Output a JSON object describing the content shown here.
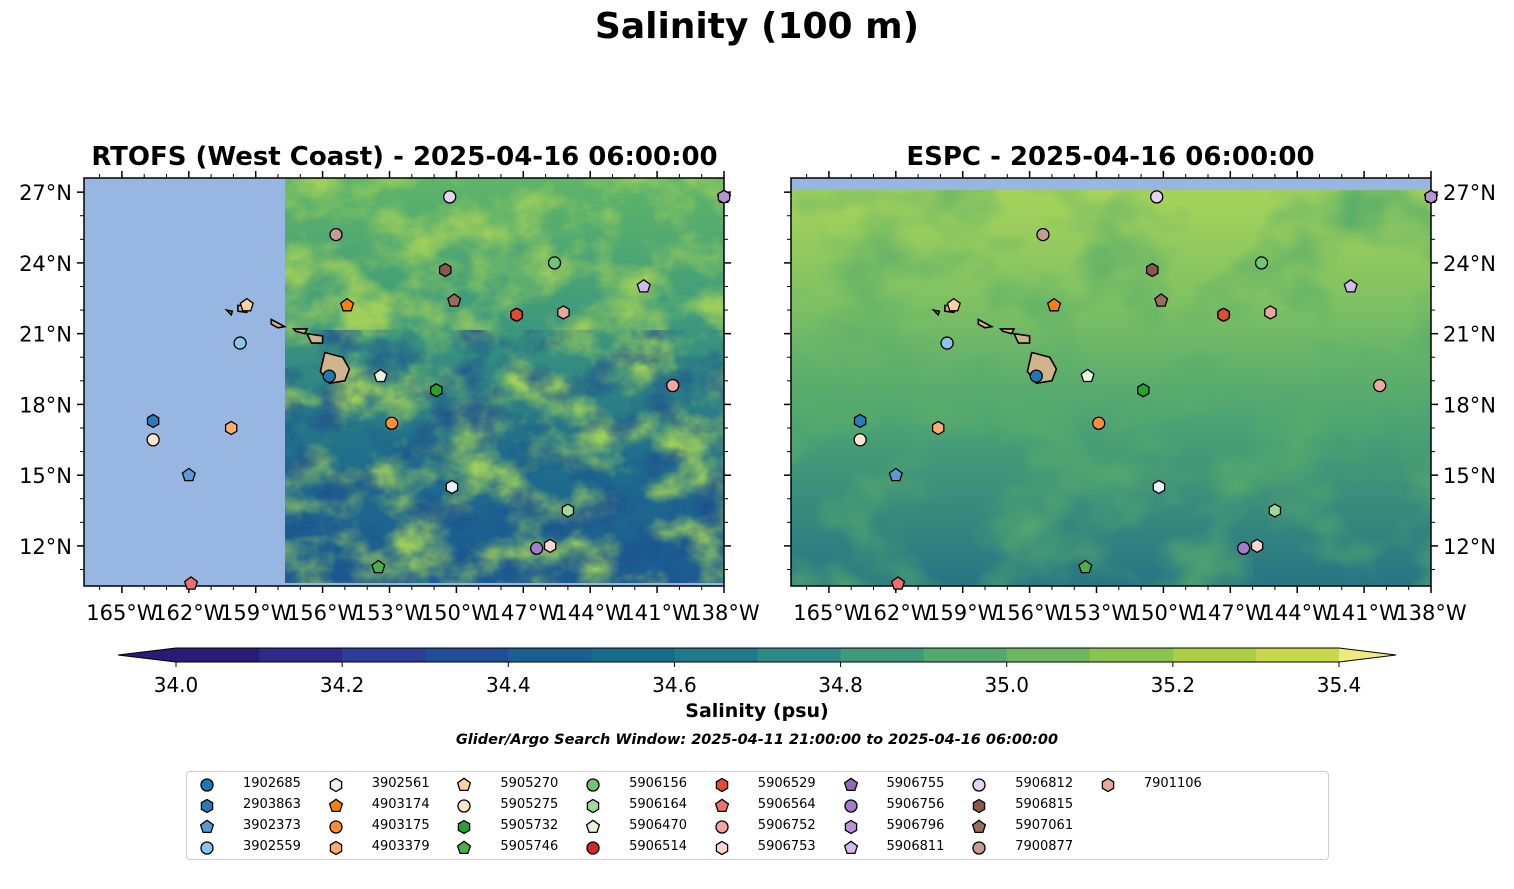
{
  "title": "Salinity (100 m)",
  "panels": [
    {
      "id": "rtofs",
      "title": "RTOFS (West Coast) - 2025-04-16 06:00:00"
    },
    {
      "id": "espc",
      "title": "ESPC - 2025-04-16 06:00:00"
    }
  ],
  "lon_ticks": [
    "165°W",
    "162°W",
    "159°W",
    "156°W",
    "153°W",
    "150°W",
    "147°W",
    "144°W",
    "141°W",
    "138°W"
  ],
  "lat_ticks": [
    "27°N",
    "24°N",
    "21°N",
    "18°N",
    "15°N",
    "12°N"
  ],
  "extent": {
    "lon": [
      -166.7,
      -138.0
    ],
    "lat": [
      10.3,
      27.6
    ]
  },
  "colorbar": {
    "label": "Salinity (psu)",
    "min": 34.0,
    "max": 35.4,
    "step": 0.1,
    "tick_labels": [
      "34.0",
      "34.2",
      "34.4",
      "34.6",
      "34.8",
      "35.0",
      "35.2",
      "35.4"
    ],
    "colors": [
      "#2b1b74",
      "#2e2a8c",
      "#2a3d98",
      "#1f4e96",
      "#1a5f92",
      "#176c8e",
      "#1f7a8a",
      "#2d8a84",
      "#3f9a7a",
      "#55a96d",
      "#6eb75e",
      "#8bc34f",
      "#a9cf45",
      "#c7d94b",
      "#efea7e"
    ]
  },
  "search_window": "Glider/Argo Search Window: 2025-04-11 21:00:00 to 2025-04-16 06:00:00",
  "floats": [
    {
      "id": "1902685",
      "marker": "circle",
      "color": "#1f77b4",
      "lon": -155.7,
      "lat": 19.2
    },
    {
      "id": "2903863",
      "marker": "hexagon",
      "color": "#2b7bba",
      "lon": -163.6,
      "lat": 17.3
    },
    {
      "id": "3902373",
      "marker": "pentagon",
      "color": "#5b9bd5",
      "lon": -162.0,
      "lat": 15.0
    },
    {
      "id": "3902559",
      "marker": "circle",
      "color": "#8cc4ec",
      "lon": -159.7,
      "lat": 20.6
    },
    {
      "id": "3902561",
      "marker": "hexagon",
      "color": "#e7f1fb",
      "lon": -150.2,
      "lat": 14.5
    },
    {
      "id": "4903174",
      "marker": "pentagon",
      "color": "#ff7f0e",
      "lon": -154.9,
      "lat": 22.2
    },
    {
      "id": "4903175",
      "marker": "circle",
      "color": "#fd8d3c",
      "lon": -152.9,
      "lat": 17.2
    },
    {
      "id": "4903379",
      "marker": "hexagon",
      "color": "#fdae6b",
      "lon": -160.1,
      "lat": 17.0
    },
    {
      "id": "5905270",
      "marker": "pentagon",
      "color": "#fdd0a2",
      "lon": -159.4,
      "lat": 22.2
    },
    {
      "id": "5905275",
      "marker": "circle",
      "color": "#fee6ce",
      "lon": -163.6,
      "lat": 16.5
    },
    {
      "id": "5905732",
      "marker": "hexagon",
      "color": "#2ca02c",
      "lon": -150.9,
      "lat": 18.6
    },
    {
      "id": "5905746",
      "marker": "pentagon",
      "color": "#4daf4a",
      "lon": -153.5,
      "lat": 11.1
    },
    {
      "id": "5906156",
      "marker": "circle",
      "color": "#74c476",
      "lon": -145.6,
      "lat": 24.0
    },
    {
      "id": "5906164",
      "marker": "hexagon",
      "color": "#a1d99b",
      "lon": -145.0,
      "lat": 13.5
    },
    {
      "id": "5906470",
      "marker": "pentagon",
      "color": "#e5f5e0",
      "lon": -153.4,
      "lat": 19.2
    },
    {
      "id": "5906514",
      "marker": "circle",
      "color": "#d62728",
      "lon": -147.3,
      "lat": 21.8
    },
    {
      "id": "5906529",
      "marker": "hexagon",
      "color": "#e34a33",
      "lon": -147.3,
      "lat": 21.8
    },
    {
      "id": "5906564",
      "marker": "pentagon",
      "color": "#ef6f6c",
      "lon": -161.9,
      "lat": 10.4
    },
    {
      "id": "5906752",
      "marker": "circle",
      "color": "#f4a6a0",
      "lon": -140.3,
      "lat": 18.8
    },
    {
      "id": "5906753",
      "marker": "hexagon",
      "color": "#fcd5d0",
      "lon": -145.8,
      "lat": 12.0
    },
    {
      "id": "5906755",
      "marker": "pentagon",
      "color": "#9467bd",
      "lon": -138.0,
      "lat": 26.8
    },
    {
      "id": "5906756",
      "marker": "circle",
      "color": "#a47cc9",
      "lon": -146.4,
      "lat": 11.9
    },
    {
      "id": "5906796",
      "marker": "hexagon",
      "color": "#b894d6",
      "lon": -138.0,
      "lat": 26.8
    },
    {
      "id": "5906811",
      "marker": "pentagon",
      "color": "#d4b9f0",
      "lon": -141.6,
      "lat": 23.0
    },
    {
      "id": "5906812",
      "marker": "circle",
      "color": "#e6d3f5",
      "lon": -150.3,
      "lat": 26.8
    },
    {
      "id": "5906815",
      "marker": "hexagon",
      "color": "#8c564b",
      "lon": -150.5,
      "lat": 23.7
    },
    {
      "id": "5907061",
      "marker": "pentagon",
      "color": "#9c6b5f",
      "lon": -150.1,
      "lat": 22.4
    },
    {
      "id": "7900877",
      "marker": "circle",
      "color": "#c49c94",
      "lon": -155.4,
      "lat": 25.2
    },
    {
      "id": "7901106",
      "marker": "hexagon",
      "color": "#e8a89a",
      "lon": -145.2,
      "lat": 21.9
    }
  ]
}
